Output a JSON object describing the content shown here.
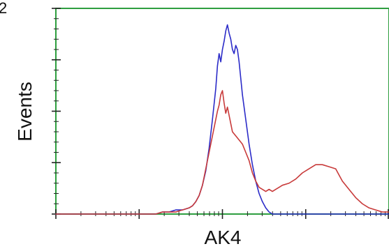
{
  "chart_data": {
    "type": "line",
    "xlabel": "AK4",
    "ylabel": "Events",
    "corner_label": "2",
    "x_scale": "log",
    "xlim": [
      0,
      100
    ],
    "ylim": [
      0,
      100
    ],
    "grid": false,
    "frame_color": "#2e9e3f",
    "series": [
      {
        "color": "#2b2bc8",
        "points": [
          [
            0,
            0
          ],
          [
            25,
            0
          ],
          [
            30,
            0
          ],
          [
            32,
            1
          ],
          [
            34,
            1
          ],
          [
            36,
            2
          ],
          [
            38,
            2
          ],
          [
            40,
            3
          ],
          [
            41,
            4
          ],
          [
            42,
            6
          ],
          [
            43,
            9
          ],
          [
            44,
            14
          ],
          [
            45,
            21
          ],
          [
            46,
            32
          ],
          [
            47,
            46
          ],
          [
            48,
            61
          ],
          [
            48.5,
            72
          ],
          [
            49,
            78
          ],
          [
            49.5,
            74
          ],
          [
            50,
            80
          ],
          [
            50.5,
            84
          ],
          [
            51,
            89
          ],
          [
            51.5,
            92
          ],
          [
            52,
            88
          ],
          [
            52.5,
            85
          ],
          [
            53,
            80
          ],
          [
            53.5,
            78
          ],
          [
            54,
            82
          ],
          [
            54.5,
            80
          ],
          [
            55,
            74
          ],
          [
            55.5,
            66
          ],
          [
            56,
            58
          ],
          [
            57,
            46
          ],
          [
            58,
            34
          ],
          [
            59,
            24
          ],
          [
            60,
            16
          ],
          [
            61,
            10
          ],
          [
            62,
            6
          ],
          [
            63,
            3
          ],
          [
            64,
            1
          ],
          [
            65,
            0
          ],
          [
            66,
            0
          ],
          [
            100,
            0
          ]
        ]
      },
      {
        "color": "#c83a3a",
        "points": [
          [
            0,
            0
          ],
          [
            25,
            0
          ],
          [
            30,
            0
          ],
          [
            32,
            1
          ],
          [
            34,
            1
          ],
          [
            36,
            1
          ],
          [
            38,
            2
          ],
          [
            40,
            3
          ],
          [
            41,
            4
          ],
          [
            42,
            6
          ],
          [
            43,
            9
          ],
          [
            44,
            14
          ],
          [
            45,
            22
          ],
          [
            46,
            30
          ],
          [
            47,
            38
          ],
          [
            48,
            46
          ],
          [
            48.5,
            50
          ],
          [
            49,
            53
          ],
          [
            49.5,
            58
          ],
          [
            50,
            60
          ],
          [
            50.5,
            54
          ],
          [
            51,
            49
          ],
          [
            51.5,
            52
          ],
          [
            52,
            48
          ],
          [
            52.5,
            44
          ],
          [
            53,
            40
          ],
          [
            54,
            38
          ],
          [
            55,
            36
          ],
          [
            56,
            34
          ],
          [
            57,
            30
          ],
          [
            58,
            26
          ],
          [
            59,
            20
          ],
          [
            60,
            16
          ],
          [
            61,
            13
          ],
          [
            62,
            12
          ],
          [
            63,
            11
          ],
          [
            64,
            12
          ],
          [
            65,
            11
          ],
          [
            66,
            12
          ],
          [
            67,
            13
          ],
          [
            68,
            14
          ],
          [
            70,
            15
          ],
          [
            72,
            17
          ],
          [
            74,
            20
          ],
          [
            76,
            22
          ],
          [
            78,
            24
          ],
          [
            80,
            24
          ],
          [
            82,
            23
          ],
          [
            84,
            22
          ],
          [
            85,
            19
          ],
          [
            86,
            16
          ],
          [
            88,
            12
          ],
          [
            90,
            8
          ],
          [
            92,
            5
          ],
          [
            94,
            3
          ],
          [
            96,
            2
          ],
          [
            98,
            1
          ],
          [
            100,
            1
          ]
        ]
      }
    ]
  }
}
